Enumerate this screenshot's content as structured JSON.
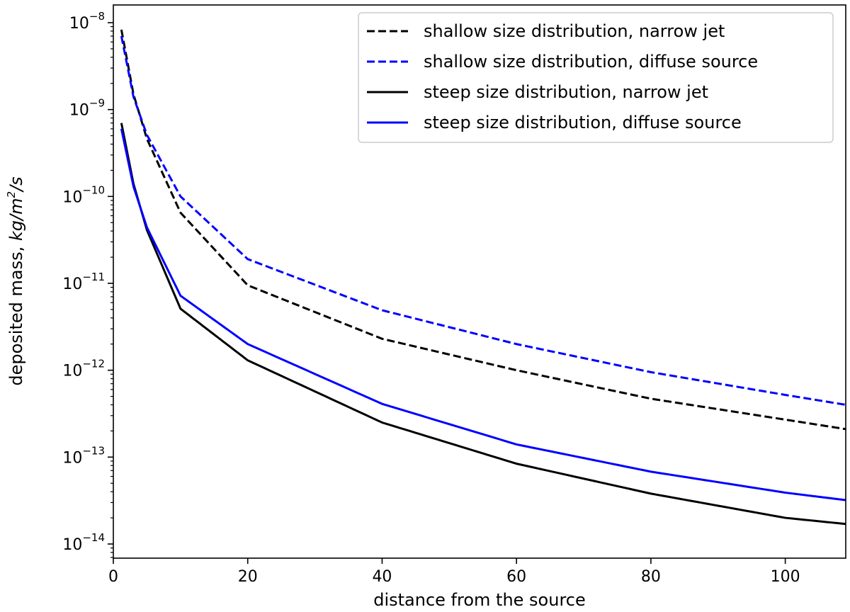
{
  "chart_data": {
    "type": "line",
    "xlabel": "distance from the source",
    "ylabel": {
      "prefix": "deposited mass, ",
      "unit_pre": "kg/m",
      "unit_sup": "2",
      "unit_post": "/s"
    },
    "x_scale": "linear",
    "y_scale": "log",
    "xlim": [
      0,
      109
    ],
    "ylim": [
      7e-15,
      1.3e-08
    ],
    "x_ticks": [
      0,
      20,
      40,
      60,
      80,
      100
    ],
    "y_ticks": [
      {
        "base": "10",
        "exp": "−8",
        "value": 1e-08
      },
      {
        "base": "10",
        "exp": "−9",
        "value": 1e-09
      },
      {
        "base": "10",
        "exp": "−10",
        "value": 1e-10
      },
      {
        "base": "10",
        "exp": "−11",
        "value": 1e-11
      },
      {
        "base": "10",
        "exp": "−12",
        "value": 1e-12
      },
      {
        "base": "10",
        "exp": "−13",
        "value": 1e-13
      },
      {
        "base": "10",
        "exp": "−14",
        "value": 1e-14
      }
    ],
    "grid": false,
    "legend_position": "top-right",
    "series": [
      {
        "name": "shallow size distribution, narrow jet",
        "color": "#000000",
        "style": "dashed",
        "points": [
          [
            1.2,
            8.3e-09
          ],
          [
            3,
            1.5e-09
          ],
          [
            5,
            4.6e-10
          ],
          [
            10,
            6.5e-11
          ],
          [
            20,
            9.5e-12
          ],
          [
            40,
            2.3e-12
          ],
          [
            60,
            1e-12
          ],
          [
            80,
            4.7e-13
          ],
          [
            100,
            2.7e-13
          ],
          [
            109,
            2.1e-13
          ]
        ]
      },
      {
        "name": "shallow size distribution, diffuse source",
        "color": "#0000ff",
        "style": "dashed",
        "points": [
          [
            1.2,
            7e-09
          ],
          [
            3,
            1.4e-09
          ],
          [
            5,
            5.1e-10
          ],
          [
            10,
            1e-10
          ],
          [
            20,
            1.9e-11
          ],
          [
            40,
            4.9e-12
          ],
          [
            60,
            2e-12
          ],
          [
            80,
            9.5e-13
          ],
          [
            100,
            5.2e-13
          ],
          [
            109,
            4e-13
          ]
        ]
      },
      {
        "name": "steep size distribution, narrow jet",
        "color": "#000000",
        "style": "solid",
        "points": [
          [
            1.2,
            7e-10
          ],
          [
            3,
            1.4e-10
          ],
          [
            5,
            4.1e-11
          ],
          [
            10,
            5.1e-12
          ],
          [
            20,
            1.3e-12
          ],
          [
            40,
            2.5e-13
          ],
          [
            60,
            8.4e-14
          ],
          [
            80,
            3.8e-14
          ],
          [
            100,
            2e-14
          ],
          [
            109,
            1.7e-14
          ]
        ]
      },
      {
        "name": "steep size distribution, diffuse source",
        "color": "#0000ff",
        "style": "solid",
        "points": [
          [
            1.2,
            6e-10
          ],
          [
            3,
            1.3e-10
          ],
          [
            5,
            4.4e-11
          ],
          [
            10,
            7.2e-12
          ],
          [
            20,
            2e-12
          ],
          [
            40,
            4.1e-13
          ],
          [
            60,
            1.4e-13
          ],
          [
            80,
            6.8e-14
          ],
          [
            100,
            3.9e-14
          ],
          [
            109,
            3.2e-14
          ]
        ]
      }
    ]
  }
}
